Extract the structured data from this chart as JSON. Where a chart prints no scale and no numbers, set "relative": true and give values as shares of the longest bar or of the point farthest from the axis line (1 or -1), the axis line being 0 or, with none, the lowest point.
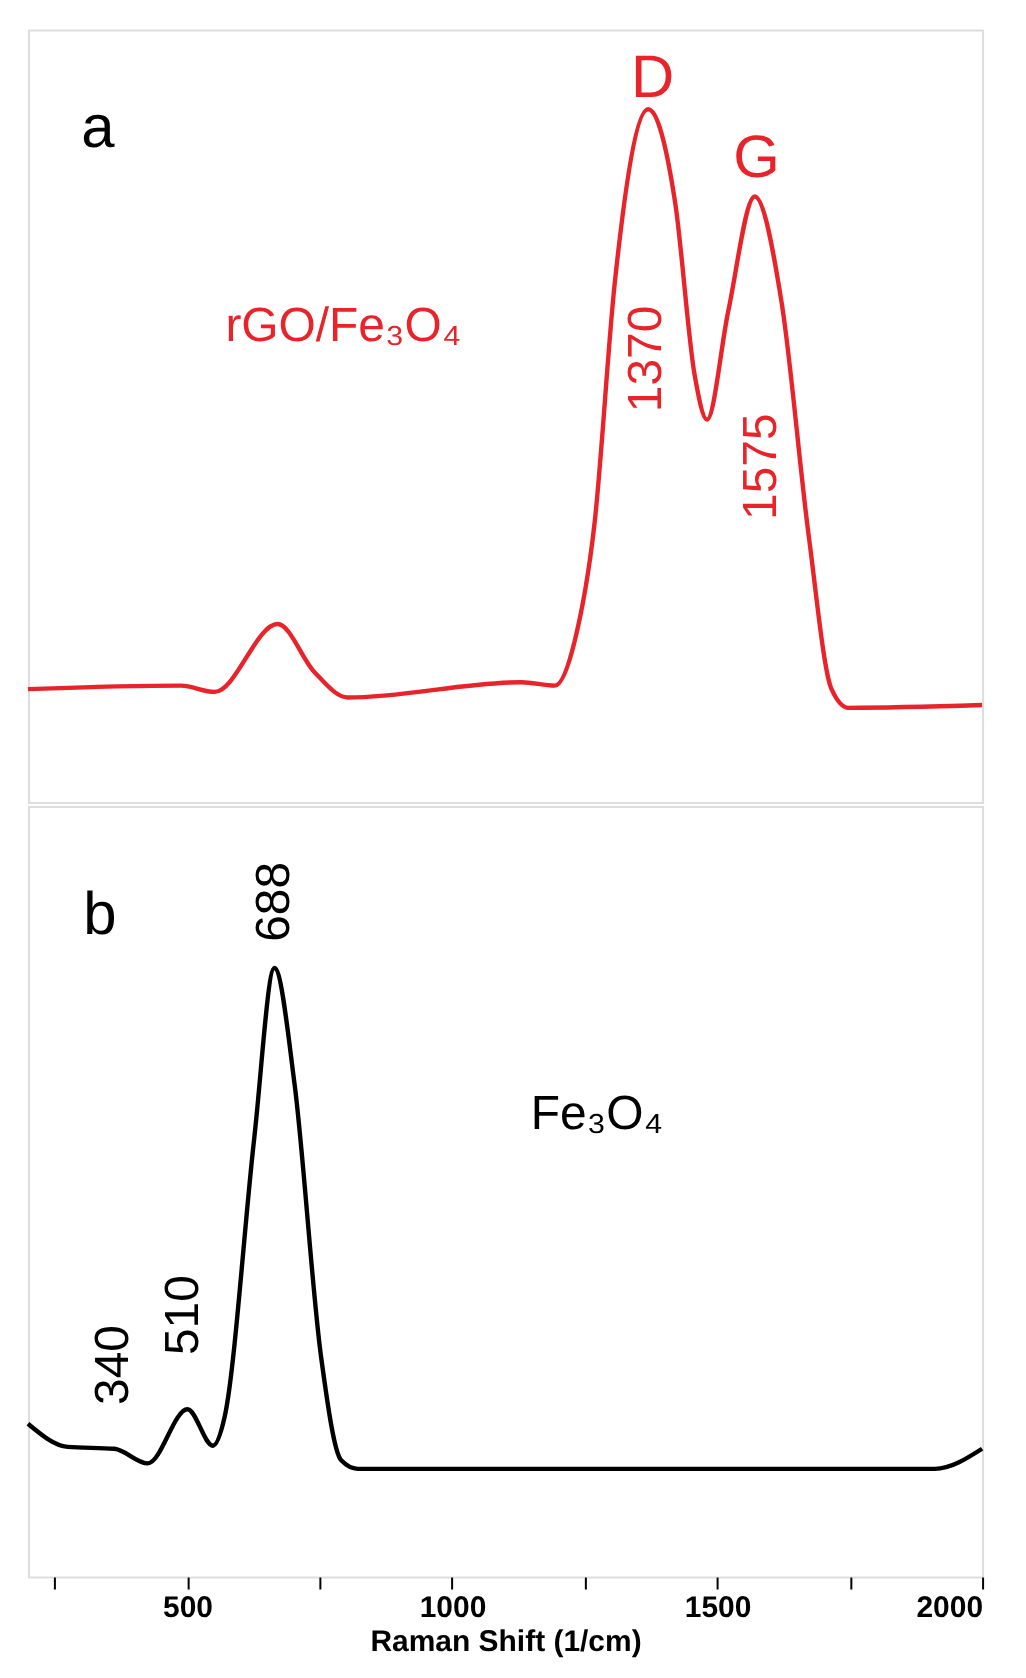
{
  "chart_data": [
    {
      "type": "line",
      "relative": true,
      "xlim": [
        200,
        2000
      ],
      "tick_labels": false,
      "marker": "none",
      "line_style": "solid",
      "x": [
        200,
        489,
        552,
        671,
        741,
        803,
        1131,
        1194,
        1231,
        1269,
        1307,
        1370,
        1421,
        1458,
        1481,
        1521,
        1571,
        1622,
        1673,
        1716,
        1748,
        2000
      ],
      "series": [
        {
          "color": "#e8232a",
          "values": [
            0.163,
            0.168,
            0.159,
            0.257,
            0.187,
            0.151,
            0.173,
            0.168,
            0.231,
            0.403,
            0.749,
            1.0,
            0.865,
            0.615,
            0.552,
            0.708,
            0.874,
            0.72,
            0.384,
            0.163,
            0.136,
            0.14
          ]
        }
      ],
      "annotations": [
        "a",
        "rGO/Fe₃O₄",
        "D",
        "G",
        "1370",
        "1575"
      ]
    },
    {
      "type": "line",
      "relative": true,
      "xlim": [
        200,
        2000
      ],
      "tick_labels": "x",
      "marker": "none",
      "line_style": "solid",
      "xlabel": "Raman Shift (1/cm)",
      "xticks": [
        {
          "value": 250,
          "label": null
        },
        500,
        {
          "value": 750,
          "label": null
        },
        1000,
        {
          "value": 1250,
          "label": null
        },
        1500,
        {
          "value": 1750,
          "label": null
        },
        2000
      ],
      "x": [
        200,
        275,
        363,
        426,
        501,
        549,
        571,
        627,
        665,
        703,
        753,
        791,
        822,
        1911,
        2000
      ],
      "series": [
        {
          "color": "#000000",
          "values": [
            0.251,
            0.213,
            0.21,
            0.186,
            0.275,
            0.215,
            0.262,
            0.721,
            1.0,
            0.809,
            0.361,
            0.191,
            0.177,
            0.177,
            0.21
          ]
        }
      ],
      "annotations": [
        "b",
        "Fe₃O₄",
        "688",
        "510",
        "340"
      ]
    }
  ]
}
